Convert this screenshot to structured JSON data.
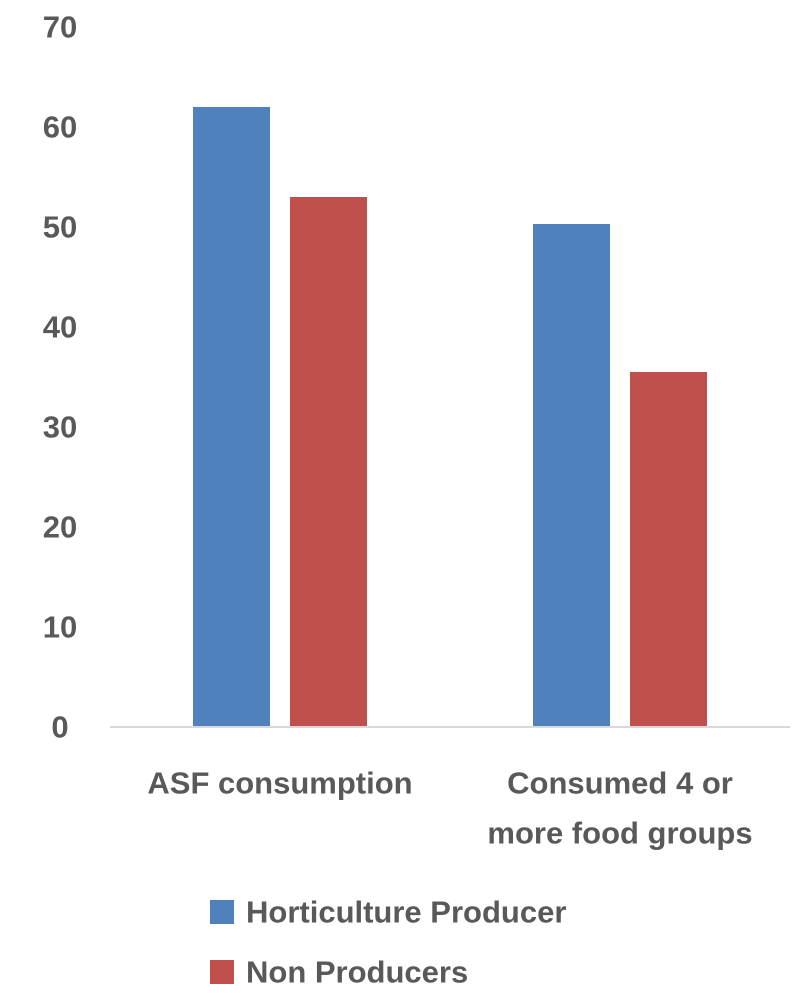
{
  "chart_data": {
    "type": "bar",
    "title": "",
    "xlabel": "",
    "ylabel": "",
    "categories": [
      [
        "ASF consumption"
      ],
      [
        "Consumed 4 or",
        "more food groups"
      ]
    ],
    "series": [
      {
        "name": "Horticulture Producer",
        "color": "#4f81bd",
        "values": [
          62,
          50.3
        ]
      },
      {
        "name": "Non Producers",
        "color": "#c0504d",
        "values": [
          53,
          35.5
        ]
      }
    ],
    "ylim": [
      0,
      70
    ],
    "yticks": [
      "0",
      "10",
      "20",
      "30",
      "40",
      "50",
      "60",
      "70"
    ],
    "grid": false,
    "legend": "bottom",
    "axis_color": "#d9d9d9",
    "label_color": "#595959"
  }
}
